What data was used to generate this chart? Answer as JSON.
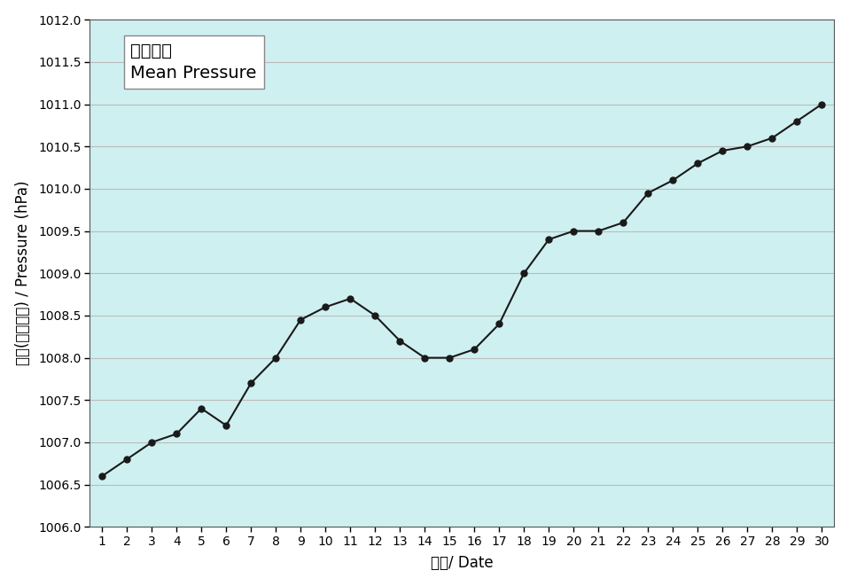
{
  "days": [
    1,
    2,
    3,
    4,
    5,
    6,
    7,
    8,
    9,
    10,
    11,
    12,
    13,
    14,
    15,
    16,
    17,
    18,
    19,
    20,
    21,
    22,
    23,
    24,
    25,
    26,
    27,
    28,
    29,
    30
  ],
  "pressure": [
    1006.6,
    1006.8,
    1007.0,
    1007.1,
    1007.4,
    1007.2,
    1007.7,
    1008.0,
    1008.45,
    1008.6,
    1008.7,
    1008.5,
    1008.2,
    1008.0,
    1008.0,
    1008.1,
    1008.4,
    1009.0,
    1009.4,
    1009.5,
    1009.5,
    1009.6,
    1009.95,
    1010.1,
    1010.3,
    1010.45,
    1010.5,
    1010.6,
    1010.8,
    1011.0
  ],
  "ylim": [
    1006.0,
    1012.0
  ],
  "ytick_interval": 0.5,
  "xlim": [
    0.5,
    30.5
  ],
  "xlabel": "日期/ Date",
  "ylabel": "氣壓(百帕斯卡) / Pressure (hPa)",
  "legend_line1": "平均氣壓",
  "legend_line2": "Mean Pressure",
  "line_color": "#1a1a1a",
  "marker_color": "#1a1a1a",
  "bg_color": "#cff0f0",
  "outer_bg_color": "#ffffff",
  "grid_color": "#bbbbbb",
  "label_fontsize": 12,
  "tick_fontsize": 10,
  "legend_fontsize_line1": 14,
  "legend_fontsize_line2": 13
}
